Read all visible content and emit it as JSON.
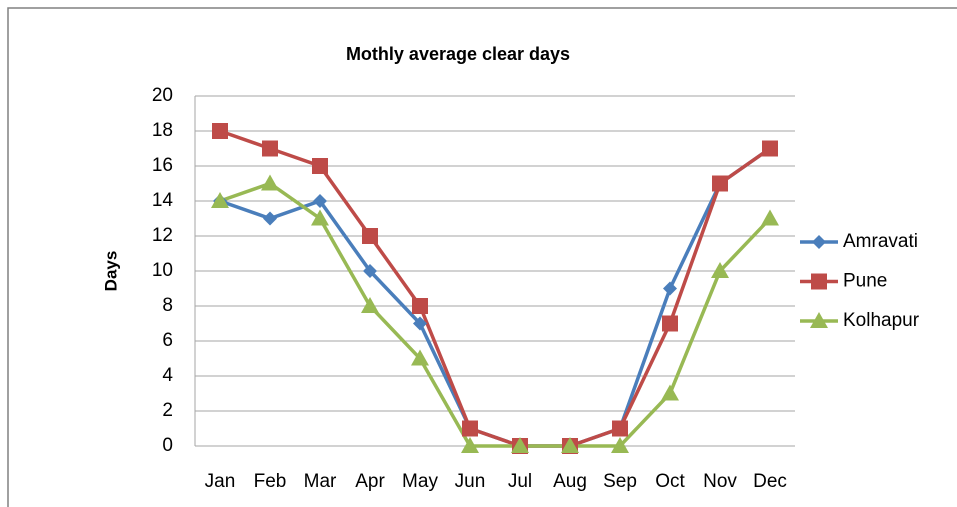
{
  "chart_data": {
    "type": "line",
    "title": "Mothly average clear days",
    "y_label": "Days",
    "categories": [
      "Jan",
      "Feb",
      "Mar",
      "Apr",
      "May",
      "Jun",
      "Jul",
      "Aug",
      "Sep",
      "Oct",
      "Nov",
      "Dec"
    ],
    "series": [
      {
        "name": "Amravati",
        "color": "#4a7ebb",
        "marker": "diamond",
        "values": [
          14,
          13,
          14,
          10,
          7,
          1,
          0,
          0,
          1,
          9,
          15,
          17
        ]
      },
      {
        "name": "Pune",
        "color": "#be4b48",
        "marker": "square",
        "values": [
          18,
          17,
          16,
          12,
          8,
          1,
          0,
          0,
          1,
          7,
          15,
          17
        ]
      },
      {
        "name": "Kolhapur",
        "color": "#98b954",
        "marker": "triangle",
        "values": [
          14,
          15,
          13,
          8,
          5,
          0,
          0,
          0,
          0,
          3,
          10,
          13
        ]
      }
    ],
    "ylim": [
      0,
      20
    ],
    "yticks": [
      0,
      2,
      4,
      6,
      8,
      10,
      12,
      14,
      16,
      18,
      20
    ],
    "grid": true,
    "legend": "right"
  }
}
